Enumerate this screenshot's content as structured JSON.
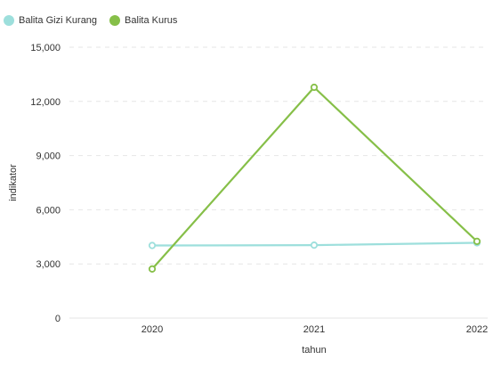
{
  "chart_data": {
    "type": "line",
    "x": [
      "2020",
      "2021",
      "2022"
    ],
    "series": [
      {
        "name": "Balita Gizi Kurang",
        "color": "#9ddfdc",
        "values": [
          4020,
          4040,
          4170
        ]
      },
      {
        "name": "Balita Kurus",
        "color": "#86bf48",
        "values": [
          2720,
          12780,
          4250
        ]
      }
    ],
    "xlabel": "tahun",
    "ylabel": "indikator",
    "ylim": [
      0,
      15000
    ],
    "yticks": [
      0,
      3000,
      6000,
      9000,
      12000,
      15000
    ],
    "ytick_labels": [
      "0",
      "3,000",
      "6,000",
      "9,000",
      "12,000",
      "15,000"
    ],
    "grid": true,
    "legend_position": "top-left"
  }
}
